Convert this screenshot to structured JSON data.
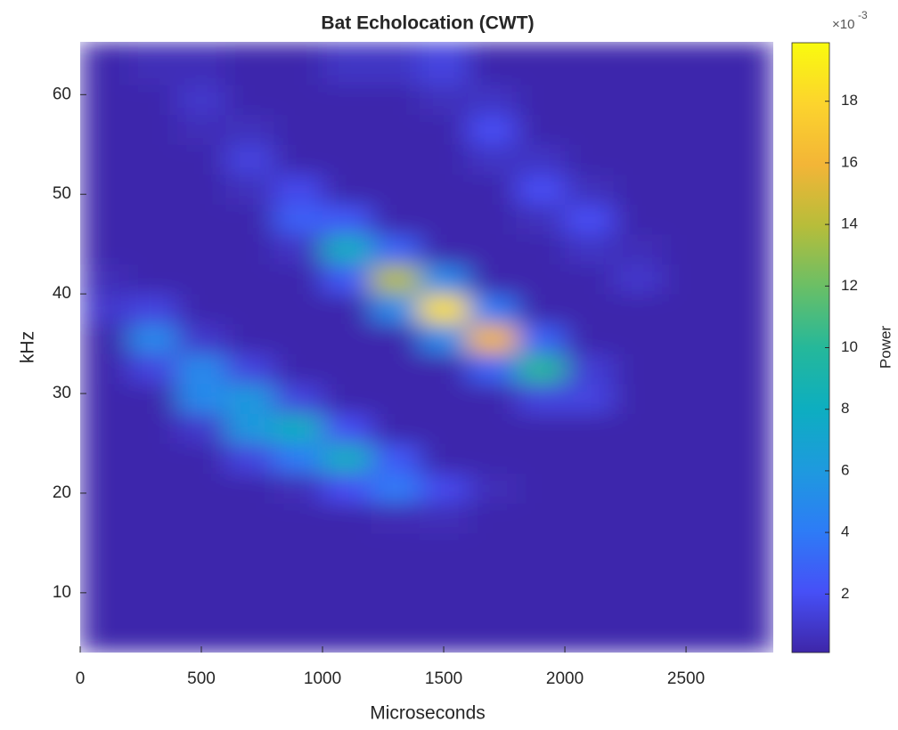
{
  "chart_data": {
    "type": "heatmap",
    "title": "Bat Echolocation (CWT)",
    "xlabel": "Microseconds",
    "ylabel": "kHz",
    "colorbar_label": "Power",
    "colorbar_multiplier": [
      "×10",
      "-3"
    ],
    "colormap": "parula",
    "x": [
      100,
      300,
      500,
      700,
      900,
      1100,
      1300,
      1500,
      1700,
      1900,
      2100,
      2300,
      2500,
      2700
    ],
    "y": [
      5.5,
      8.5,
      11.5,
      14.5,
      17.5,
      20.5,
      23.5,
      26.5,
      29.5,
      32.5,
      35.5,
      38.5,
      41.5,
      44.5,
      47.5,
      50.5,
      53.5,
      56.5,
      59.5,
      62.5
    ],
    "z": [
      [
        0.2,
        0.2,
        0.2,
        0.2,
        0.2,
        0.2,
        0.2,
        0.2,
        0.2,
        0.2,
        0.2,
        0.2,
        0.2,
        0.2
      ],
      [
        0.2,
        0.2,
        0.2,
        0.2,
        0.2,
        0.2,
        0.2,
        0.2,
        0.2,
        0.2,
        0.2,
        0.2,
        0.2,
        0.2
      ],
      [
        0.2,
        0.2,
        0.2,
        0.2,
        0.2,
        0.2,
        0.2,
        0.2,
        0.2,
        0.2,
        0.2,
        0.2,
        0.2,
        0.2
      ],
      [
        0.2,
        0.2,
        0.2,
        0.2,
        0.2,
        0.2,
        0.2,
        0.2,
        0.2,
        0.2,
        0.2,
        0.2,
        0.2,
        0.2
      ],
      [
        0.2,
        0.2,
        0.2,
        0.2,
        0.2,
        0.2,
        0.4,
        0.5,
        0.2,
        0.2,
        0.2,
        0.2,
        0.2,
        0.2
      ],
      [
        0.2,
        0.2,
        0.2,
        0.2,
        0.5,
        2,
        4,
        1.8,
        0.5,
        0.2,
        0.2,
        0.2,
        0.2,
        0.2
      ],
      [
        0.2,
        0.2,
        0.2,
        1.5,
        4,
        8,
        2.5,
        0.2,
        0.2,
        0.2,
        0.2,
        0.2,
        0.2,
        0.2
      ],
      [
        0.2,
        0.2,
        1,
        6,
        8,
        2,
        0.2,
        0.2,
        0.2,
        0.2,
        0.2,
        0.2,
        0.2,
        0.2
      ],
      [
        0.2,
        0.2,
        5,
        6,
        1.5,
        0.2,
        0.2,
        0.2,
        0.2,
        1.5,
        1.5,
        0.2,
        0.2,
        0.2
      ],
      [
        0.2,
        1.5,
        5,
        1.5,
        0.2,
        0.2,
        0.2,
        0.2,
        3,
        10,
        1.2,
        0.2,
        0.2,
        0.2
      ],
      [
        0.2,
        5,
        1,
        0.2,
        0.2,
        0.2,
        0.2,
        5,
        16,
        3,
        0.2,
        0.2,
        0.2,
        0.2
      ],
      [
        1,
        1.5,
        0.2,
        0.2,
        0.2,
        0.2,
        5,
        18.5,
        4,
        0.2,
        0.2,
        0.2,
        0.2,
        0.2
      ],
      [
        0.5,
        0.2,
        0.2,
        0.2,
        0.2,
        2.5,
        14,
        5,
        0.2,
        0.2,
        0.2,
        1,
        0.2,
        0.2
      ],
      [
        0.2,
        0.2,
        0.2,
        0.2,
        0.8,
        8,
        3,
        0.2,
        0.2,
        0.2,
        0.8,
        0.5,
        0.2,
        0.2
      ],
      [
        0.2,
        0.2,
        0.2,
        0.2,
        2.8,
        2.5,
        0.2,
        0.2,
        0.2,
        0.6,
        2,
        0.2,
        0.2,
        0.2
      ],
      [
        0.2,
        0.2,
        0.2,
        0.6,
        1.8,
        0.2,
        0.2,
        0.2,
        0.2,
        2,
        0.6,
        0.2,
        0.2,
        0.2
      ],
      [
        0.2,
        0.2,
        0.2,
        1.5,
        0.2,
        0.2,
        0.2,
        0.2,
        0.8,
        0.8,
        0.2,
        0.2,
        0.2,
        0.2
      ],
      [
        0.2,
        0.2,
        0.5,
        0.6,
        0.2,
        0.2,
        0.2,
        0.2,
        2,
        0.2,
        0.2,
        0.2,
        0.2,
        0.2
      ],
      [
        0.2,
        0.2,
        1,
        0.2,
        0.2,
        0.2,
        0.2,
        0.6,
        0.8,
        0.2,
        0.2,
        0.2,
        0.2,
        0.2
      ],
      [
        0.2,
        0.5,
        0.5,
        0.2,
        0.2,
        0.8,
        0.8,
        1.5,
        0.2,
        0.2,
        0.2,
        0.2,
        0.2,
        0.2
      ]
    ],
    "xlim": [
      0,
      2860
    ],
    "xticks": [
      0,
      500,
      1000,
      1500,
      2000,
      2500
    ],
    "ylim": [
      4,
      65.3
    ],
    "yticks": [
      10,
      20,
      30,
      40,
      50,
      60
    ],
    "clim": [
      0.1,
      19.9
    ],
    "cticks": [
      2,
      4,
      6,
      8,
      10,
      12,
      14,
      16,
      18
    ]
  }
}
